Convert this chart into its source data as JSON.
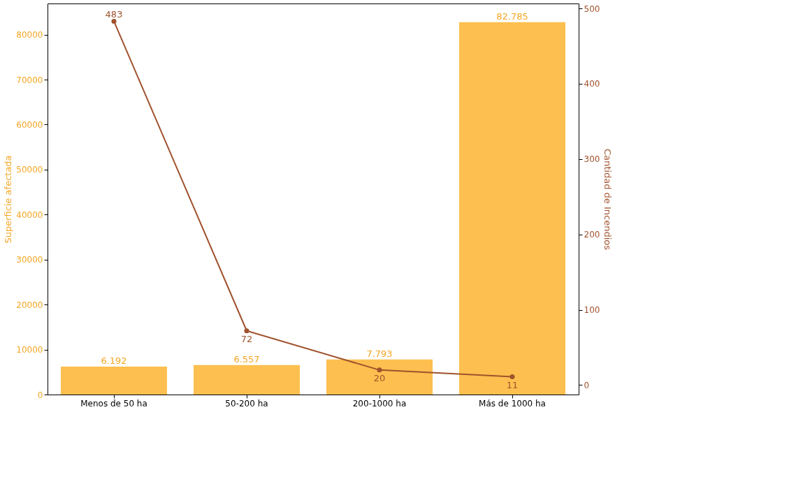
{
  "chart_data": {
    "type": "bar",
    "ylabel": "Superficie afectada",
    "y2label": "Cantidad de Incendios",
    "categories": [
      "Menos de 50 ha",
      "50-200 ha",
      "200-1000 ha",
      "Más de 1000 ha"
    ],
    "series": [
      {
        "name": null,
        "color": "#fdbf4f",
        "values": [
          6192,
          6557,
          7793,
          82785
        ],
        "value_labels": [
          "6.192",
          "6.557",
          "7.793",
          "82.785"
        ]
      },
      {
        "name": null,
        "type": "line",
        "axis": "y2",
        "color": "#a0522d",
        "values": [
          483,
          72,
          20,
          11
        ],
        "value_labels": [
          "483",
          "72",
          "20",
          "11"
        ]
      }
    ],
    "ylim": [
      0,
      86924
    ],
    "yticks": [
      0,
      10000,
      20000,
      30000,
      40000,
      50000,
      60000,
      70000,
      80000
    ],
    "y2lim": [
      -12.6,
      506.6
    ],
    "y2ticks": [
      0,
      100,
      200,
      300,
      400,
      500
    ],
    "marker": "circle",
    "line_style": "solid"
  }
}
